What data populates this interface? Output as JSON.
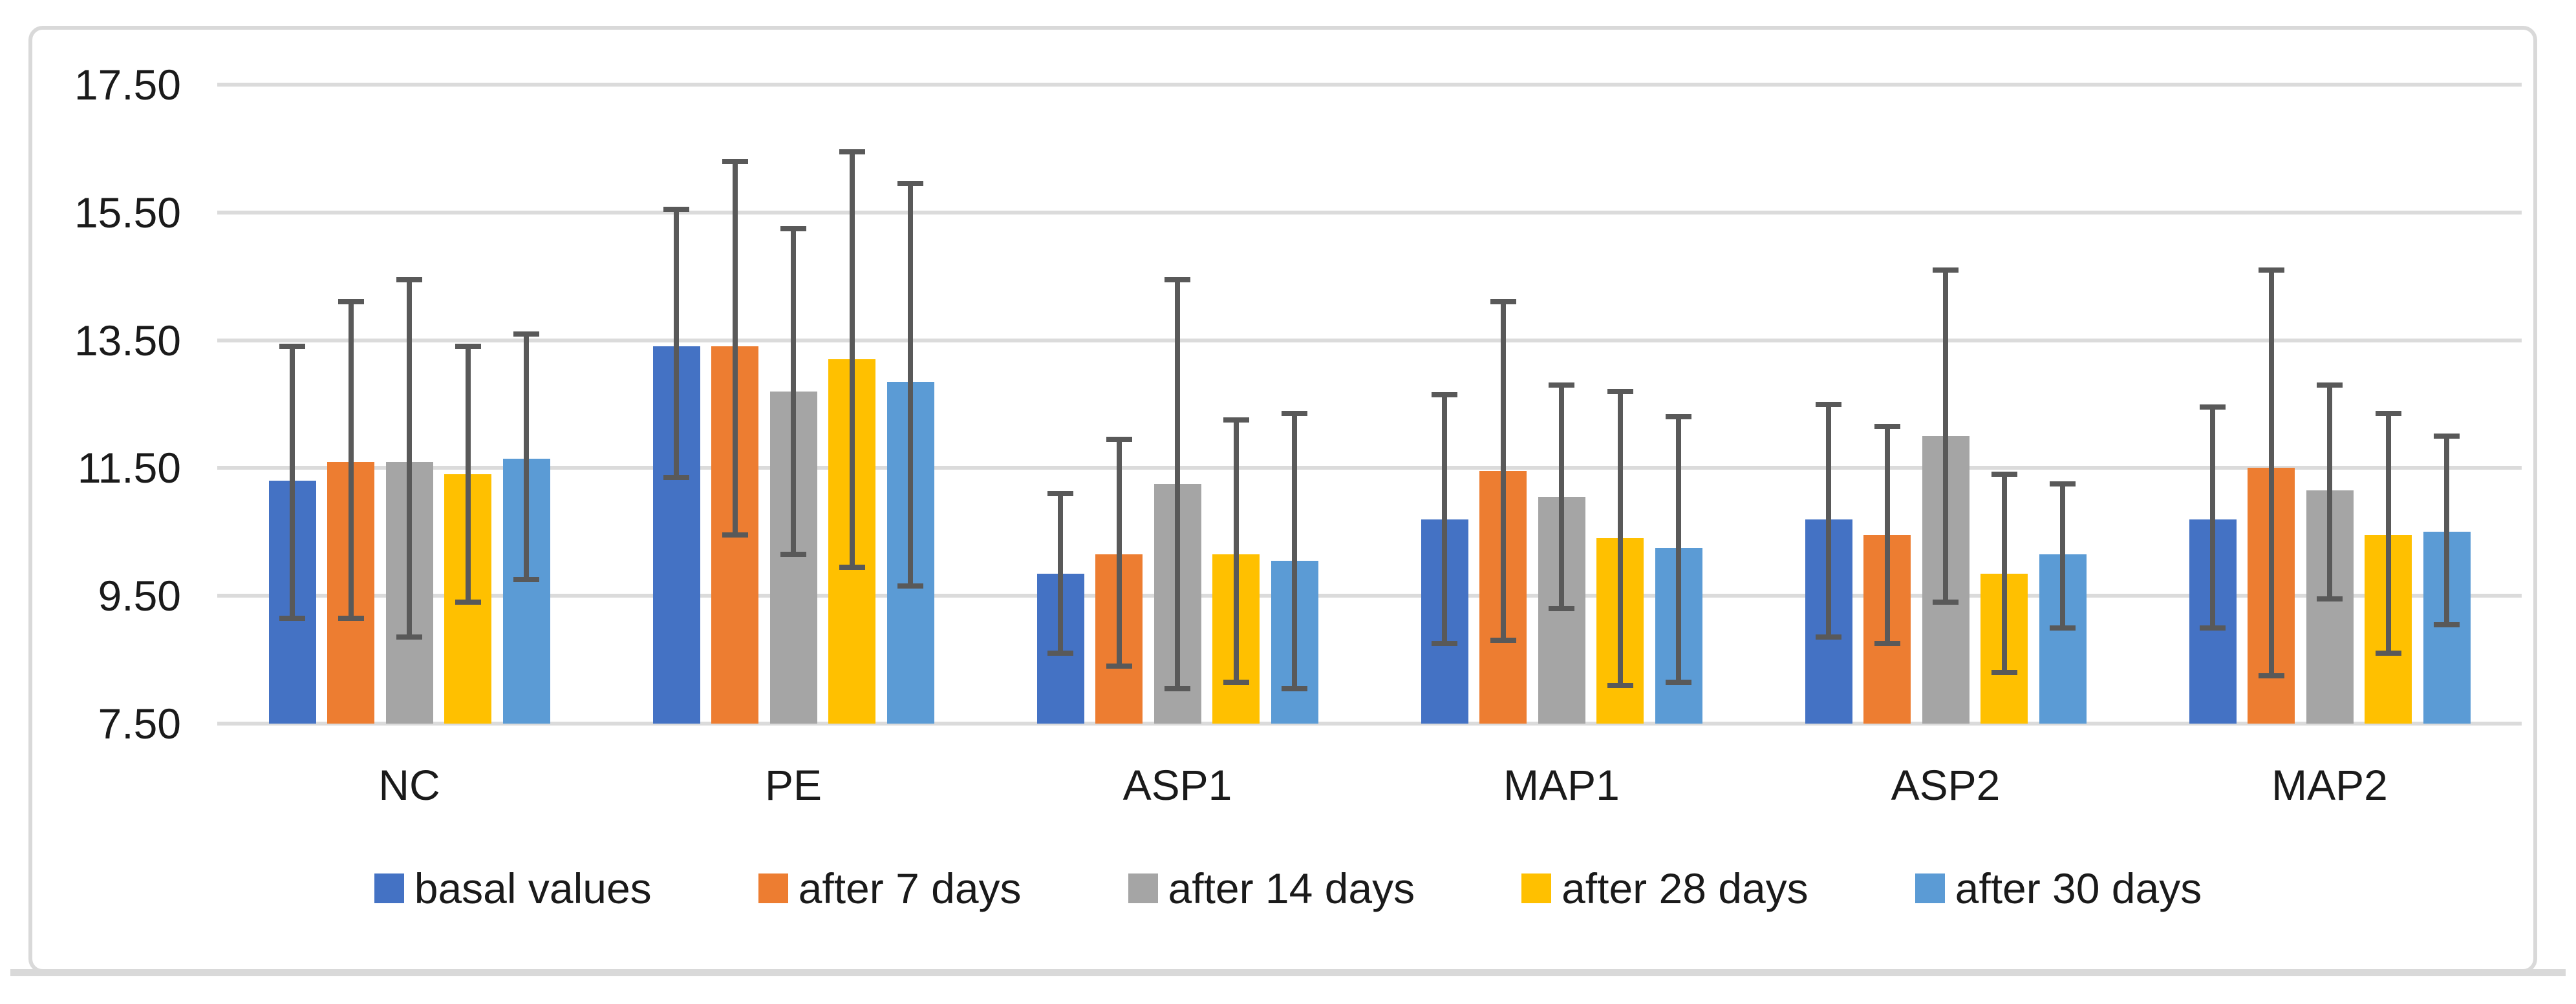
{
  "figure": {
    "background_color": "#FFFFFF",
    "frame_border_color": "#D9D9D9",
    "gridline_color": "#DBDBDB",
    "text_color": "#1A1A1A",
    "error_bar_color": "#595959"
  },
  "chart_data": {
    "type": "bar",
    "title": "",
    "xlabel": "",
    "ylabel": "",
    "grid": true,
    "legend_position": "bottom",
    "ylim": [
      7.5,
      17.5
    ],
    "y_ticks": [
      17.5,
      15.5,
      13.5,
      11.5,
      9.5,
      7.5
    ],
    "y_tick_labels": [
      "17.50",
      "15.50",
      "13.50",
      "11.50",
      "9.50",
      "7.50"
    ],
    "categories": [
      "NC",
      "PE",
      "ASP1",
      "MAP1",
      "ASP2",
      "MAP2"
    ],
    "series": [
      {
        "name": "basal values",
        "color": "#4472C4",
        "values": [
          11.3,
          13.4,
          9.85,
          10.7,
          10.7,
          10.7
        ],
        "error_high": [
          13.4,
          15.55,
          11.1,
          12.65,
          12.5,
          12.45
        ],
        "error_low": [
          9.15,
          11.35,
          8.6,
          8.75,
          8.85,
          9.0
        ]
      },
      {
        "name": "after 7 days",
        "color": "#ED7D31",
        "values": [
          11.6,
          13.4,
          10.15,
          11.45,
          10.45,
          11.5
        ],
        "error_high": [
          14.1,
          16.3,
          11.95,
          14.1,
          12.15,
          14.6
        ],
        "error_low": [
          9.15,
          10.45,
          8.4,
          8.8,
          8.75,
          8.25
        ]
      },
      {
        "name": "after 14 days",
        "color": "#A5A5A5",
        "values": [
          11.6,
          12.7,
          11.25,
          11.05,
          12.0,
          11.15
        ],
        "error_high": [
          14.45,
          15.25,
          14.45,
          12.8,
          14.6,
          12.8
        ],
        "error_low": [
          8.85,
          10.15,
          8.05,
          9.3,
          9.4,
          9.45
        ]
      },
      {
        "name": "after 28 days",
        "color": "#FFC000",
        "values": [
          11.4,
          13.2,
          10.15,
          10.4,
          9.85,
          10.45
        ],
        "error_high": [
          13.4,
          16.45,
          12.25,
          12.7,
          11.4,
          12.35
        ],
        "error_low": [
          9.4,
          9.95,
          8.15,
          8.1,
          8.3,
          8.6
        ]
      },
      {
        "name": "after 30 days",
        "color": "#5B9BD5",
        "values": [
          11.65,
          12.85,
          10.05,
          10.25,
          10.15,
          10.5
        ],
        "error_high": [
          13.6,
          15.95,
          12.35,
          12.3,
          11.25,
          12.0
        ],
        "error_low": [
          9.75,
          9.65,
          8.05,
          8.15,
          9.0,
          9.05
        ]
      }
    ]
  }
}
